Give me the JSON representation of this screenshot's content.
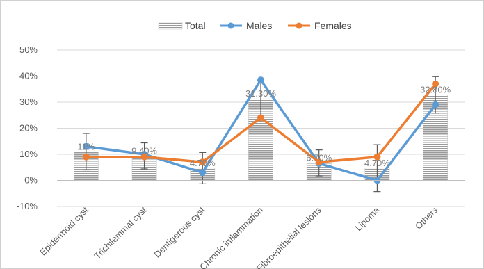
{
  "chart_data": {
    "type": "bar",
    "categories": [
      "Epidermoid cyst",
      "Trichilemmal cyst",
      "Dentigerous cyst",
      "Chronic inflammation",
      "Fibroepithelial lesions",
      "Lipoma",
      "Others"
    ],
    "series": [
      {
        "name": "Total",
        "type": "bar",
        "values": [
          11,
          9.4,
          4.7,
          31.3,
          6.7,
          4.7,
          32.8
        ],
        "data_labels": [
          "11%",
          "9.40%",
          "4.70%",
          "31.30%",
          "6.70%",
          "4.70%",
          "32.80%"
        ],
        "error": [
          7,
          5,
          6,
          7,
          5,
          9,
          7
        ],
        "color": "#a6a6a6"
      },
      {
        "name": "Males",
        "type": "line",
        "values": [
          13,
          10,
          3,
          38.5,
          6.5,
          0,
          29
        ],
        "color": "#5b9bd5"
      },
      {
        "name": "Females",
        "type": "line",
        "values": [
          9,
          9,
          7,
          24,
          7,
          9,
          37
        ],
        "color": "#ed7d31"
      }
    ],
    "ylim": [
      -10,
      50
    ],
    "yticks": [
      -10,
      0,
      10,
      20,
      30,
      40,
      50
    ],
    "ytick_labels": [
      "-10%",
      "0%",
      "10%",
      "20%",
      "30%",
      "40%",
      "50%"
    ],
    "grid": true,
    "legend": "top-center",
    "title": "",
    "xlabel": "",
    "ylabel": ""
  }
}
